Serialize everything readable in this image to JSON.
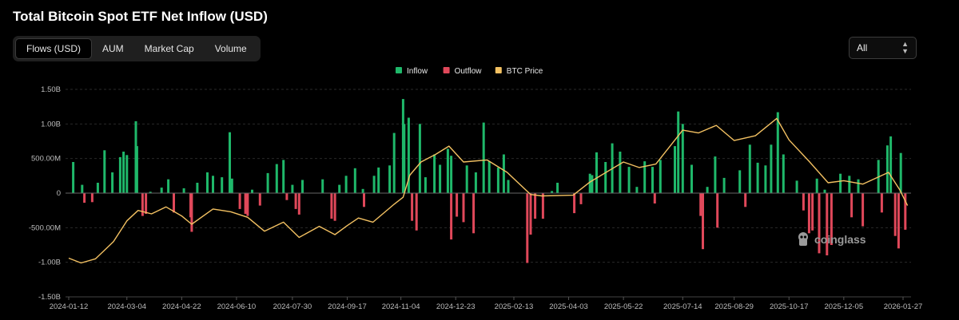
{
  "title": "Total Bitcoin Spot ETF Net Inflow (USD)",
  "tabs": [
    {
      "label": "Flows (USD)",
      "active": true
    },
    {
      "label": "AUM",
      "active": false
    },
    {
      "label": "Market Cap",
      "active": false
    },
    {
      "label": "Volume",
      "active": false
    }
  ],
  "range_select": {
    "value": "All",
    "icon": "chevron-up-down-icon"
  },
  "watermark": "coinglass",
  "watermark_icon": "coinglass-logo-icon",
  "colors": {
    "inflow": "#1fb86a",
    "outflow": "#e0485a",
    "price": "#f3c162",
    "grid": "#2a2a2a"
  },
  "chart_data": {
    "type": "bar",
    "legend": [
      {
        "name": "Inflow",
        "color": "#1fb86a"
      },
      {
        "name": "Outflow",
        "color": "#e0485a"
      },
      {
        "name": "BTC Price",
        "color": "#f3c162"
      }
    ],
    "legend_position": "top-center",
    "grid": true,
    "x_ticks": [
      "2024-01-12",
      "2024-03-04",
      "2024-04-22",
      "2024-06-10",
      "2024-07-30",
      "2024-09-17",
      "2024-11-04",
      "2024-12-23",
      "2025-02-13",
      "2025-04-03",
      "2025-05-22",
      "2025-07-14",
      "2025-08-29",
      "2025-10-17",
      "2025-12-05",
      "2026-01-27"
    ],
    "y_ticks": [
      "1.50B",
      "1.00B",
      "500.00M",
      "0",
      "-500.00M",
      "-1.00B",
      "-1.50B"
    ],
    "ylim_usd_millions": [
      -1500,
      1500
    ],
    "series": [
      {
        "name": "Inflow",
        "points": [
          [
            "2024-01-16",
            450
          ],
          [
            "2024-01-24",
            120
          ],
          [
            "2024-02-07",
            150
          ],
          [
            "2024-02-13",
            620
          ],
          [
            "2024-02-20",
            300
          ],
          [
            "2024-02-27",
            520
          ],
          [
            "2024-03-01",
            600
          ],
          [
            "2024-03-04",
            550
          ],
          [
            "2024-03-12",
            1040
          ],
          [
            "2024-03-13",
            680
          ],
          [
            "2024-03-25",
            20
          ],
          [
            "2024-04-04",
            80
          ],
          [
            "2024-04-10",
            200
          ],
          [
            "2024-04-24",
            70
          ],
          [
            "2024-05-06",
            150
          ],
          [
            "2024-05-15",
            300
          ],
          [
            "2024-05-20",
            250
          ],
          [
            "2024-05-28",
            230
          ],
          [
            "2024-06-04",
            880
          ],
          [
            "2024-06-06",
            210
          ],
          [
            "2024-06-24",
            50
          ],
          [
            "2024-07-08",
            290
          ],
          [
            "2024-07-16",
            420
          ],
          [
            "2024-07-22",
            480
          ],
          [
            "2024-07-30",
            120
          ],
          [
            "2024-08-08",
            190
          ],
          [
            "2024-08-26",
            200
          ],
          [
            "2024-09-10",
            120
          ],
          [
            "2024-09-16",
            250
          ],
          [
            "2024-09-24",
            360
          ],
          [
            "2024-10-01",
            60
          ],
          [
            "2024-10-11",
            250
          ],
          [
            "2024-10-15",
            370
          ],
          [
            "2024-10-25",
            400
          ],
          [
            "2024-10-29",
            870
          ],
          [
            "2024-11-06",
            1360
          ],
          [
            "2024-11-07",
            1000
          ],
          [
            "2024-11-11",
            1090
          ],
          [
            "2024-11-21",
            1000
          ],
          [
            "2024-11-26",
            230
          ],
          [
            "2024-12-04",
            560
          ],
          [
            "2024-12-09",
            410
          ],
          [
            "2024-12-16",
            640
          ],
          [
            "2024-12-19",
            540
          ],
          [
            "2025-01-02",
            400
          ],
          [
            "2025-01-10",
            300
          ],
          [
            "2025-01-17",
            1020
          ],
          [
            "2025-01-22",
            460
          ],
          [
            "2025-01-30",
            370
          ],
          [
            "2025-02-04",
            560
          ],
          [
            "2025-02-08",
            190
          ],
          [
            "2025-03-19",
            30
          ],
          [
            "2025-03-24",
            150
          ],
          [
            "2025-04-22",
            280
          ],
          [
            "2025-04-24",
            260
          ],
          [
            "2025-04-28",
            590
          ],
          [
            "2025-05-06",
            450
          ],
          [
            "2025-05-12",
            720
          ],
          [
            "2025-05-19",
            600
          ],
          [
            "2025-05-27",
            380
          ],
          [
            "2025-06-03",
            90
          ],
          [
            "2025-06-10",
            460
          ],
          [
            "2025-06-17",
            380
          ],
          [
            "2025-06-24",
            480
          ],
          [
            "2025-07-07",
            680
          ],
          [
            "2025-07-10",
            1180
          ],
          [
            "2025-07-14",
            1000
          ],
          [
            "2025-07-22",
            410
          ],
          [
            "2025-08-05",
            90
          ],
          [
            "2025-08-12",
            530
          ],
          [
            "2025-08-20",
            220
          ],
          [
            "2025-09-03",
            330
          ],
          [
            "2025-09-12",
            700
          ],
          [
            "2025-09-19",
            440
          ],
          [
            "2025-09-26",
            400
          ],
          [
            "2025-10-01",
            700
          ],
          [
            "2025-10-07",
            1170
          ],
          [
            "2025-10-12",
            560
          ],
          [
            "2025-10-24",
            180
          ],
          [
            "2025-11-11",
            210
          ],
          [
            "2025-11-18",
            50
          ],
          [
            "2025-12-02",
            280
          ],
          [
            "2025-12-10",
            250
          ],
          [
            "2025-12-18",
            200
          ],
          [
            "2026-01-05",
            480
          ],
          [
            "2026-01-13",
            690
          ],
          [
            "2026-01-16",
            820
          ],
          [
            "2026-01-25",
            580
          ]
        ]
      },
      {
        "name": "Outflow",
        "points": [
          [
            "2024-01-26",
            -140
          ],
          [
            "2024-02-02",
            -130
          ],
          [
            "2024-03-18",
            -330
          ],
          [
            "2024-03-21",
            -300
          ],
          [
            "2024-04-15",
            -280
          ],
          [
            "2024-04-30",
            -350
          ],
          [
            "2024-05-01",
            -560
          ],
          [
            "2024-06-13",
            -230
          ],
          [
            "2024-06-18",
            -300
          ],
          [
            "2024-06-20",
            -330
          ],
          [
            "2024-07-01",
            -180
          ],
          [
            "2024-07-25",
            -100
          ],
          [
            "2024-08-02",
            -230
          ],
          [
            "2024-08-05",
            -310
          ],
          [
            "2024-09-03",
            -370
          ],
          [
            "2024-09-06",
            -400
          ],
          [
            "2024-10-02",
            -200
          ],
          [
            "2024-11-14",
            -400
          ],
          [
            "2024-11-18",
            -540
          ],
          [
            "2024-12-19",
            -670
          ],
          [
            "2024-12-24",
            -340
          ],
          [
            "2024-12-30",
            -420
          ],
          [
            "2025-01-08",
            -580
          ],
          [
            "2025-02-25",
            -1010
          ],
          [
            "2025-02-28",
            -600
          ],
          [
            "2025-03-04",
            -370
          ],
          [
            "2025-03-11",
            -370
          ],
          [
            "2025-04-08",
            -290
          ],
          [
            "2025-04-14",
            -160
          ],
          [
            "2025-06-19",
            -150
          ],
          [
            "2025-07-30",
            -330
          ],
          [
            "2025-08-01",
            -810
          ],
          [
            "2025-08-14",
            -500
          ],
          [
            "2025-09-08",
            -200
          ],
          [
            "2025-10-30",
            -250
          ],
          [
            "2025-11-04",
            -580
          ],
          [
            "2025-11-07",
            -540
          ],
          [
            "2025-11-13",
            -870
          ],
          [
            "2025-11-20",
            -900
          ],
          [
            "2025-11-24",
            -750
          ],
          [
            "2025-12-12",
            -350
          ],
          [
            "2025-12-22",
            -480
          ],
          [
            "2026-01-08",
            -280
          ],
          [
            "2026-01-20",
            -620
          ],
          [
            "2026-01-23",
            -800
          ],
          [
            "2026-01-29",
            -530
          ]
        ]
      },
      {
        "name": "BTC Price",
        "axis": "unlabeled",
        "points": [
          [
            "2024-01-12",
            -940
          ],
          [
            "2024-01-23",
            -1010
          ],
          [
            "2024-02-05",
            -950
          ],
          [
            "2024-02-21",
            -700
          ],
          [
            "2024-03-04",
            -400
          ],
          [
            "2024-03-14",
            -250
          ],
          [
            "2024-03-26",
            -300
          ],
          [
            "2024-04-08",
            -200
          ],
          [
            "2024-04-22",
            -330
          ],
          [
            "2024-05-01",
            -450
          ],
          [
            "2024-05-20",
            -230
          ],
          [
            "2024-06-05",
            -270
          ],
          [
            "2024-06-20",
            -350
          ],
          [
            "2024-07-05",
            -550
          ],
          [
            "2024-07-22",
            -420
          ],
          [
            "2024-08-05",
            -640
          ],
          [
            "2024-08-23",
            -480
          ],
          [
            "2024-09-06",
            -600
          ],
          [
            "2024-09-17",
            -470
          ],
          [
            "2024-09-27",
            -360
          ],
          [
            "2024-10-10",
            -420
          ],
          [
            "2024-10-29",
            -160
          ],
          [
            "2024-11-06",
            -60
          ],
          [
            "2024-11-12",
            260
          ],
          [
            "2024-11-22",
            450
          ],
          [
            "2024-12-05",
            560
          ],
          [
            "2024-12-17",
            680
          ],
          [
            "2024-12-30",
            450
          ],
          [
            "2025-01-20",
            480
          ],
          [
            "2025-02-07",
            300
          ],
          [
            "2025-02-28",
            -20
          ],
          [
            "2025-03-10",
            -40
          ],
          [
            "2025-04-07",
            -30
          ],
          [
            "2025-04-22",
            160
          ],
          [
            "2025-05-22",
            450
          ],
          [
            "2025-06-05",
            370
          ],
          [
            "2025-06-20",
            420
          ],
          [
            "2025-07-14",
            910
          ],
          [
            "2025-07-28",
            870
          ],
          [
            "2025-08-13",
            980
          ],
          [
            "2025-08-29",
            760
          ],
          [
            "2025-09-17",
            830
          ],
          [
            "2025-10-06",
            1080
          ],
          [
            "2025-10-17",
            770
          ],
          [
            "2025-11-04",
            460
          ],
          [
            "2025-11-21",
            150
          ],
          [
            "2025-12-05",
            180
          ],
          [
            "2025-12-22",
            130
          ],
          [
            "2026-01-14",
            300
          ],
          [
            "2026-01-24",
            50
          ],
          [
            "2026-01-31",
            -180
          ]
        ]
      }
    ]
  }
}
